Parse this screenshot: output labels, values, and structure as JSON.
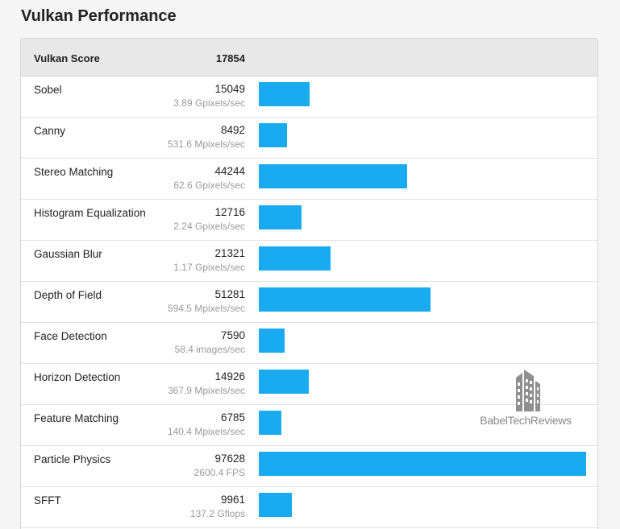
{
  "page": {
    "title": "Vulkan Performance"
  },
  "watermark": {
    "text": "BabelTechReviews"
  },
  "colors": {
    "bar": "#19aaf0",
    "header_bg": "#e8e8e8"
  },
  "chart_data": {
    "type": "bar",
    "orientation": "horizontal",
    "summary": {
      "label": "Vulkan Score",
      "value": 17854
    },
    "xlim": [
      0,
      97628
    ],
    "categories": [
      "Sobel",
      "Canny",
      "Stereo Matching",
      "Histogram Equalization",
      "Gaussian Blur",
      "Depth of Field",
      "Face Detection",
      "Horizon Detection",
      "Feature Matching",
      "Particle Physics",
      "SFFT"
    ],
    "values": [
      15049,
      8492,
      44244,
      12716,
      21321,
      51281,
      7590,
      14926,
      6785,
      97628,
      9961
    ],
    "rates": [
      "3.89 Gpixels/sec",
      "531.6 Mpixels/sec",
      "62.6 Gpixels/sec",
      "2.24 Gpixels/sec",
      "1.17 Gpixels/sec",
      "594.5 Mpixels/sec",
      "58.4 images/sec",
      "367.9 Mpixels/sec",
      "140.4 Mpixels/sec",
      "2600.4 FPS",
      "137.2 Gflops"
    ]
  }
}
